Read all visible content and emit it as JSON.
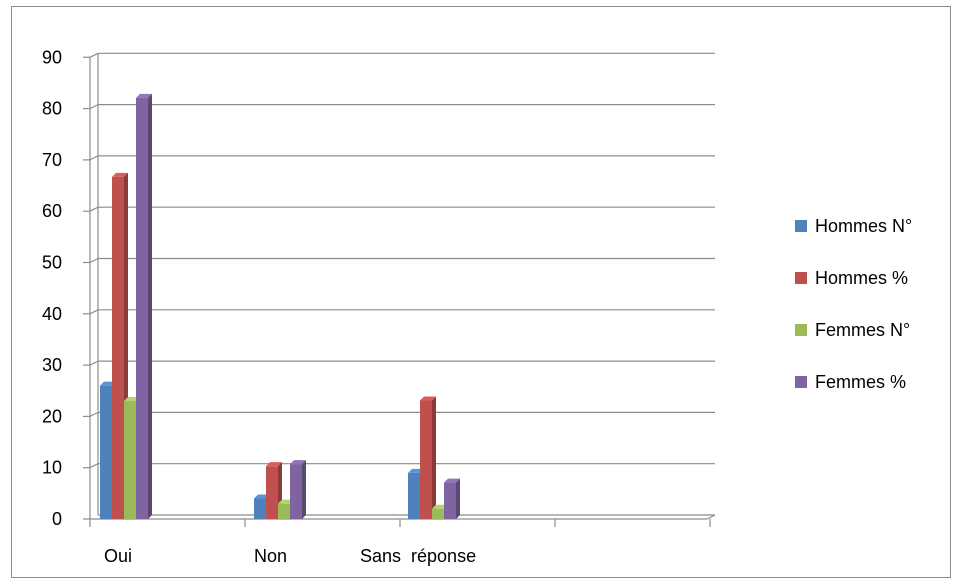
{
  "chart_data": {
    "type": "bar",
    "categories": [
      "Oui",
      "Non",
      "Sans  réponse"
    ],
    "series": [
      {
        "name": "Hommes N°",
        "values": [
          26,
          4,
          9
        ],
        "color": "#4F81BD"
      },
      {
        "name": "Hommes %",
        "values": [
          66.7,
          10.3,
          23.1
        ],
        "color": "#C0504D"
      },
      {
        "name": "Femmes N°",
        "values": [
          23,
          3,
          2
        ],
        "color": "#9BBB59"
      },
      {
        "name": "Femmes %",
        "values": [
          82.1,
          10.7,
          7.1
        ],
        "color": "#8064A2"
      }
    ],
    "yticks": [
      "0",
      "10",
      "20",
      "30",
      "40",
      "50",
      "60",
      "70",
      "80",
      "90"
    ],
    "ylim": [
      0,
      90
    ],
    "grid": true,
    "legend_position": "right",
    "title": "",
    "xlabel": "",
    "ylabel": ""
  }
}
